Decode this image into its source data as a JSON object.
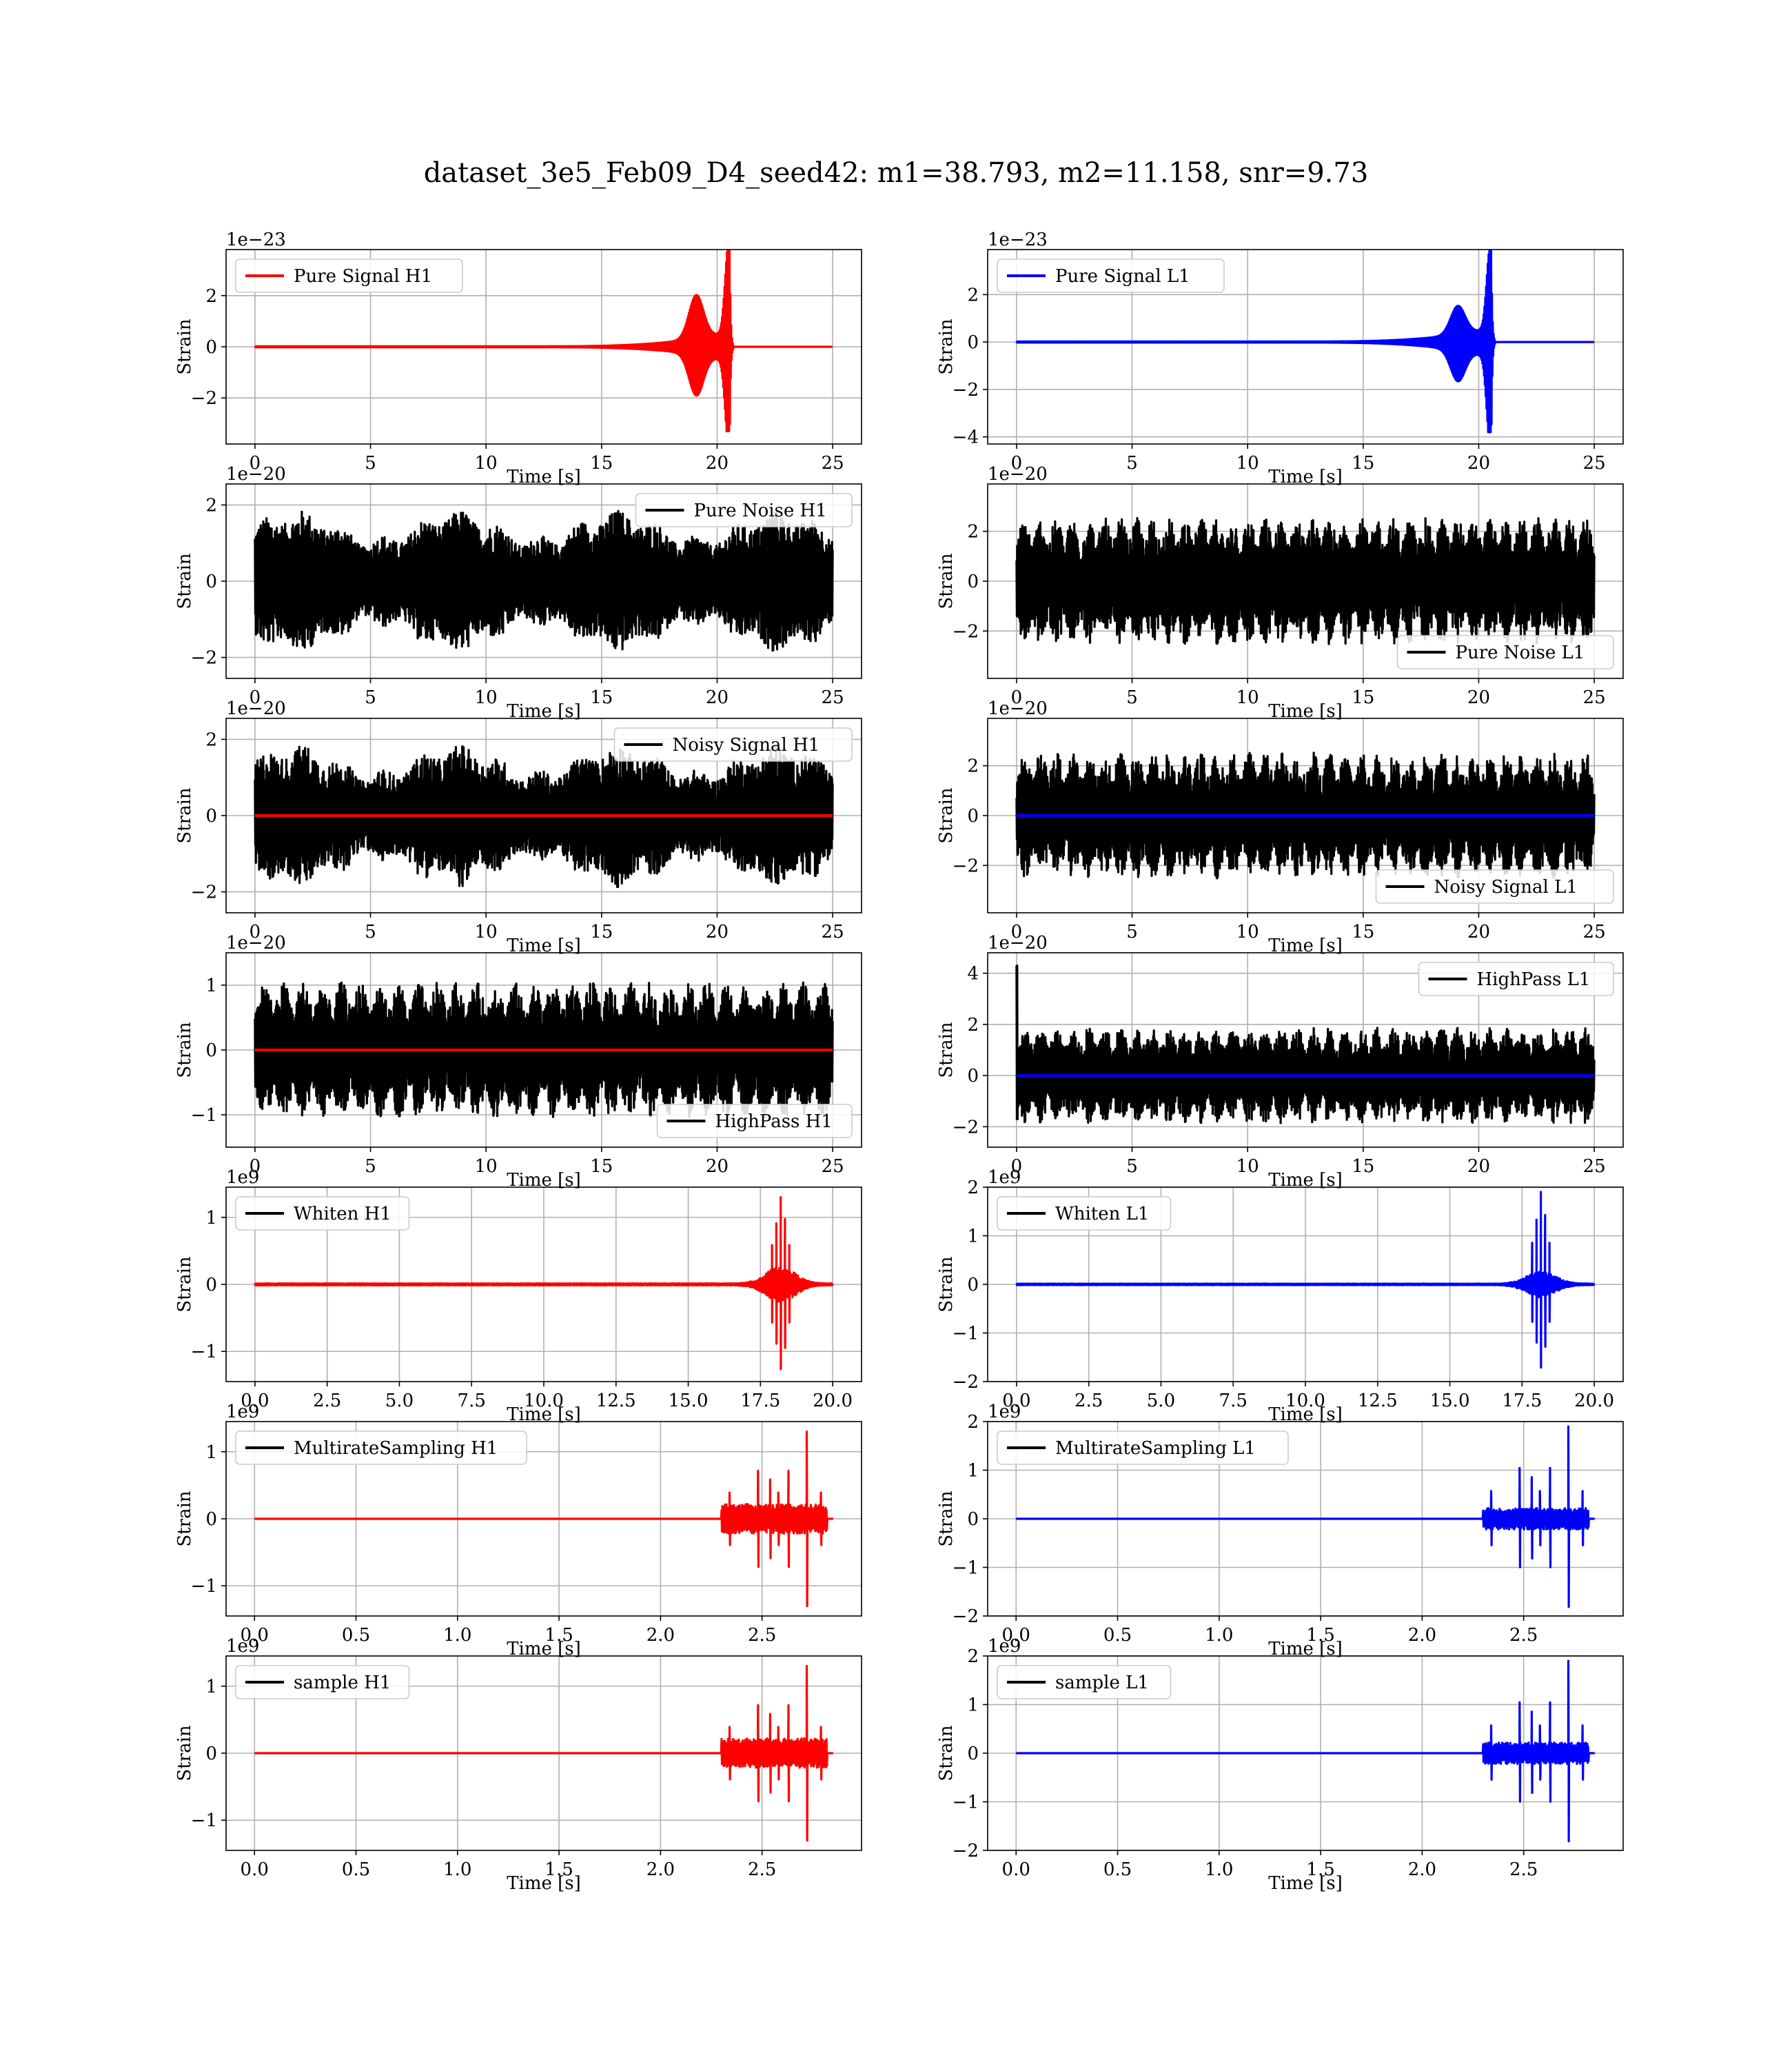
{
  "figure": {
    "title": "dataset_3e5_Feb09_D4_seed42: m1=38.793, m2=11.158, snr=9.73"
  },
  "colors": {
    "h1": "#ff0000",
    "l1": "#0000ff",
    "noise": "#000000",
    "grid": "#b0b0b0"
  },
  "chart_data": [
    {
      "type": "line",
      "id": "pure-signal-h1",
      "legend": [
        "Pure Signal H1"
      ],
      "legend_loc": "upper-left",
      "xlabel": "Time [s]",
      "ylabel": "Strain",
      "offset_label": "1e−23",
      "xlim": [
        -1.25,
        26.25
      ],
      "ylim": [
        -3.8,
        3.8
      ],
      "xticks": [
        0,
        5,
        10,
        15,
        20,
        25
      ],
      "xticklabels": [
        "0",
        "5",
        "10",
        "15",
        "20",
        "25"
      ],
      "yticks": [
        -2,
        0,
        2
      ],
      "yticklabels": [
        "−2",
        "0",
        "2"
      ],
      "grid": true,
      "x_end": 25,
      "series": [
        {
          "kind": "chirp",
          "color": "#ff0000",
          "merger": 20.55,
          "peak_main": 3.5,
          "peak_min": -3.3,
          "bump_time": 19.1,
          "bump_height": 1.7
        }
      ]
    },
    {
      "type": "line",
      "id": "pure-signal-l1",
      "legend": [
        "Pure Signal L1"
      ],
      "legend_loc": "upper-left",
      "xlabel": "Time [s]",
      "ylabel": "Strain",
      "offset_label": "1e−23",
      "xlim": [
        -1.25,
        26.25
      ],
      "ylim": [
        -4.3,
        3.9
      ],
      "xticks": [
        0,
        5,
        10,
        15,
        20,
        25
      ],
      "xticklabels": [
        "0",
        "5",
        "10",
        "15",
        "20",
        "25"
      ],
      "yticks": [
        -4,
        -2,
        0,
        2
      ],
      "yticklabels": [
        "−4",
        "−2",
        "0",
        "2"
      ],
      "grid": true,
      "x_end": 25,
      "series": [
        {
          "kind": "chirp",
          "color": "#0000ff",
          "merger": 20.55,
          "peak_main": 3.5,
          "peak_min": -3.8,
          "bump_time": 19.1,
          "bump_height": 1.2
        }
      ]
    },
    {
      "type": "line",
      "id": "pure-noise-h1",
      "legend": [
        "Pure Noise H1"
      ],
      "legend_loc": "upper-right",
      "xlabel": "Time [s]",
      "ylabel": "Strain",
      "offset_label": "1e−20",
      "xlim": [
        -1.25,
        26.25
      ],
      "ylim": [
        -2.55,
        2.55
      ],
      "xticks": [
        0,
        5,
        10,
        15,
        20,
        25
      ],
      "xticklabels": [
        "0",
        "5",
        "10",
        "15",
        "20",
        "25"
      ],
      "yticks": [
        -2,
        0,
        2
      ],
      "yticklabels": [
        "−2",
        "0",
        "2"
      ],
      "grid": true,
      "x_end": 25,
      "series": [
        {
          "kind": "noise",
          "color": "#000000",
          "amplitude": 1.55,
          "peak": 2.3,
          "periods": 0
        }
      ]
    },
    {
      "type": "line",
      "id": "pure-noise-l1",
      "legend": [
        "Pure Noise L1"
      ],
      "legend_loc": "lower-right",
      "xlabel": "Time [s]",
      "ylabel": "Strain",
      "offset_label": "1e−20",
      "xlim": [
        -1.25,
        26.25
      ],
      "ylim": [
        -3.9,
        3.9
      ],
      "xticks": [
        0,
        5,
        10,
        15,
        20,
        25
      ],
      "xticklabels": [
        "0",
        "5",
        "10",
        "15",
        "20",
        "25"
      ],
      "yticks": [
        -2,
        0,
        2
      ],
      "yticklabels": [
        "−2",
        "0",
        "2"
      ],
      "grid": true,
      "x_end": 25,
      "series": [
        {
          "kind": "noise",
          "color": "#000000",
          "amplitude": 2.3,
          "peak": 3.4,
          "periods": 36
        }
      ]
    },
    {
      "type": "line",
      "id": "noisy-signal-h1",
      "legend": [
        "Noisy Signal H1"
      ],
      "legend_loc": "upper-right",
      "xlabel": "Time [s]",
      "ylabel": "Strain",
      "offset_label": "1e−20",
      "xlim": [
        -1.25,
        26.25
      ],
      "ylim": [
        -2.55,
        2.55
      ],
      "xticks": [
        0,
        5,
        10,
        15,
        20,
        25
      ],
      "xticklabels": [
        "0",
        "5",
        "10",
        "15",
        "20",
        "25"
      ],
      "yticks": [
        -2,
        0,
        2
      ],
      "yticklabels": [
        "−2",
        "0",
        "2"
      ],
      "grid": true,
      "x_end": 25,
      "series": [
        {
          "kind": "noise",
          "color": "#000000",
          "amplitude": 1.55,
          "peak": 2.3,
          "periods": 0
        },
        {
          "kind": "flat",
          "color": "#ff0000"
        }
      ]
    },
    {
      "type": "line",
      "id": "noisy-signal-l1",
      "legend": [
        "Noisy Signal L1"
      ],
      "legend_loc": "lower-right",
      "xlabel": "Time [s]",
      "ylabel": "Strain",
      "offset_label": "1e−20",
      "xlim": [
        -1.25,
        26.25
      ],
      "ylim": [
        -3.9,
        3.9
      ],
      "xticks": [
        0,
        5,
        10,
        15,
        20,
        25
      ],
      "xticklabels": [
        "0",
        "5",
        "10",
        "15",
        "20",
        "25"
      ],
      "yticks": [
        -2,
        0,
        2
      ],
      "yticklabels": [
        "−2",
        "0",
        "2"
      ],
      "grid": true,
      "x_end": 25,
      "series": [
        {
          "kind": "noise",
          "color": "#000000",
          "amplitude": 2.3,
          "peak": 3.4,
          "periods": 36
        },
        {
          "kind": "flat",
          "color": "#0000ff"
        }
      ]
    },
    {
      "type": "line",
      "id": "highpass-h1",
      "legend": [
        "HighPass H1"
      ],
      "legend_loc": "lower-right",
      "xlabel": "Time [s]",
      "ylabel": "Strain",
      "offset_label": "1e−20",
      "xlim": [
        -1.25,
        26.25
      ],
      "ylim": [
        -1.5,
        1.5
      ],
      "xticks": [
        0,
        5,
        10,
        15,
        20,
        25
      ],
      "xticklabels": [
        "0",
        "5",
        "10",
        "15",
        "20",
        "25"
      ],
      "yticks": [
        -1,
        0,
        1
      ],
      "yticklabels": [
        "−1",
        "0",
        "1"
      ],
      "grid": true,
      "x_end": 25,
      "series": [
        {
          "kind": "noise",
          "color": "#000000",
          "amplitude": 0.95,
          "peak": 1.35,
          "periods": 30
        },
        {
          "kind": "flat",
          "color": "#ff0000"
        }
      ]
    },
    {
      "type": "line",
      "id": "highpass-l1",
      "legend": [
        "HighPass L1"
      ],
      "legend_loc": "upper-right",
      "xlabel": "Time [s]",
      "ylabel": "Strain",
      "offset_label": "1e−20",
      "xlim": [
        -1.25,
        26.25
      ],
      "ylim": [
        -2.8,
        4.8
      ],
      "xticks": [
        0,
        5,
        10,
        15,
        20,
        25
      ],
      "xticklabels": [
        "0",
        "5",
        "10",
        "15",
        "20",
        "25"
      ],
      "yticks": [
        -2,
        0,
        2,
        4
      ],
      "yticklabels": [
        "−2",
        "0",
        "2",
        "4"
      ],
      "grid": true,
      "x_end": 25,
      "series": [
        {
          "kind": "noise",
          "color": "#000000",
          "amplitude": 1.7,
          "peak": 2.4,
          "periods": 36,
          "spike": 4.3
        },
        {
          "kind": "flat",
          "color": "#0000ff"
        }
      ]
    },
    {
      "type": "line",
      "id": "whiten-h1",
      "legend": [
        "Whiten H1"
      ],
      "legend_loc": "upper-left",
      "xlabel": "Time [s]",
      "ylabel": "Strain",
      "offset_label": "1e9",
      "xlim": [
        -1.0,
        21.0
      ],
      "ylim": [
        -1.45,
        1.45
      ],
      "xticks": [
        0,
        2.5,
        5,
        7.5,
        10,
        12.5,
        15,
        17.5,
        20
      ],
      "xticklabels": [
        "0.0",
        "2.5",
        "5.0",
        "7.5",
        "10.0",
        "12.5",
        "15.0",
        "17.5",
        "20.0"
      ],
      "yticks": [
        -1,
        0,
        1
      ],
      "yticklabels": [
        "−1",
        "0",
        "1"
      ],
      "grid": true,
      "x_end": 20,
      "series": [
        {
          "kind": "burst",
          "color": "#ff0000",
          "center": 18.2,
          "width": 0.7,
          "peak": 1.3,
          "trough": -1.33
        }
      ]
    },
    {
      "type": "line",
      "id": "whiten-l1",
      "legend": [
        "Whiten L1"
      ],
      "legend_loc": "upper-left",
      "xlabel": "Time [s]",
      "ylabel": "Strain",
      "offset_label": "1e9",
      "xlim": [
        -1.0,
        21.0
      ],
      "ylim": [
        -2.0,
        2.0
      ],
      "xticks": [
        0,
        2.5,
        5,
        7.5,
        10,
        12.5,
        15,
        17.5,
        20
      ],
      "xticklabels": [
        "0.0",
        "2.5",
        "5.0",
        "7.5",
        "10.0",
        "12.5",
        "15.0",
        "17.5",
        "20.0"
      ],
      "yticks": [
        -2,
        -1,
        0,
        1,
        2
      ],
      "yticklabels": [
        "−2",
        "−1",
        "0",
        "1",
        "2"
      ],
      "grid": true,
      "x_end": 20,
      "series": [
        {
          "kind": "burst",
          "color": "#0000ff",
          "center": 18.15,
          "width": 0.7,
          "peak": 1.9,
          "trough": -1.8
        }
      ]
    },
    {
      "type": "line",
      "id": "multiratesampling-h1",
      "legend": [
        "MultirateSampling H1"
      ],
      "legend_loc": "upper-left",
      "xlabel": "Time [s]",
      "ylabel": "Strain",
      "offset_label": "1e9",
      "xlim": [
        -0.14,
        2.99
      ],
      "ylim": [
        -1.45,
        1.45
      ],
      "xticks": [
        0,
        0.5,
        1.0,
        1.5,
        2.0,
        2.5
      ],
      "xticklabels": [
        "0.0",
        "0.5",
        "1.0",
        "1.5",
        "2.0",
        "2.5"
      ],
      "yticks": [
        -1,
        0,
        1
      ],
      "yticklabels": [
        "−1",
        "0",
        "1"
      ],
      "grid": true,
      "x_end": 2.85,
      "series": [
        {
          "kind": "multirate",
          "color": "#ff0000",
          "start": 2.3,
          "spike_time": 2.72,
          "peak": 1.3,
          "trough": -1.33
        }
      ]
    },
    {
      "type": "line",
      "id": "multiratesampling-l1",
      "legend": [
        "MultirateSampling L1"
      ],
      "legend_loc": "upper-left",
      "xlabel": "Time [s]",
      "ylabel": "Strain",
      "offset_label": "1e9",
      "xlim": [
        -0.14,
        2.99
      ],
      "ylim": [
        -2.0,
        2.0
      ],
      "xticks": [
        0,
        0.5,
        1.0,
        1.5,
        2.0,
        2.5
      ],
      "xticklabels": [
        "0.0",
        "0.5",
        "1.0",
        "1.5",
        "2.0",
        "2.5"
      ],
      "yticks": [
        -2,
        -1,
        0,
        1,
        2
      ],
      "yticklabels": [
        "−2",
        "−1",
        "0",
        "1",
        "2"
      ],
      "grid": true,
      "x_end": 2.85,
      "series": [
        {
          "kind": "multirate",
          "color": "#0000ff",
          "start": 2.3,
          "spike_time": 2.72,
          "peak": 1.9,
          "trough": -1.85
        }
      ]
    },
    {
      "type": "line",
      "id": "sample-h1",
      "legend": [
        "sample H1"
      ],
      "legend_loc": "upper-left",
      "xlabel": "Time [s]",
      "ylabel": "Strain",
      "offset_label": "1e9",
      "xlim": [
        -0.14,
        2.99
      ],
      "ylim": [
        -1.45,
        1.45
      ],
      "xticks": [
        0,
        0.5,
        1.0,
        1.5,
        2.0,
        2.5
      ],
      "xticklabels": [
        "0.0",
        "0.5",
        "1.0",
        "1.5",
        "2.0",
        "2.5"
      ],
      "yticks": [
        -1,
        0,
        1
      ],
      "yticklabels": [
        "−1",
        "0",
        "1"
      ],
      "grid": true,
      "x_end": 2.85,
      "series": [
        {
          "kind": "multirate",
          "color": "#ff0000",
          "start": 2.3,
          "spike_time": 2.72,
          "peak": 1.3,
          "trough": -1.33
        }
      ]
    },
    {
      "type": "line",
      "id": "sample-l1",
      "legend": [
        "sample L1"
      ],
      "legend_loc": "upper-left",
      "xlabel": "Time [s]",
      "ylabel": "Strain",
      "offset_label": "1e9",
      "xlim": [
        -0.14,
        2.99
      ],
      "ylim": [
        -2.0,
        2.0
      ],
      "xticks": [
        0,
        0.5,
        1.0,
        1.5,
        2.0,
        2.5
      ],
      "xticklabels": [
        "0.0",
        "0.5",
        "1.0",
        "1.5",
        "2.0",
        "2.5"
      ],
      "yticks": [
        -2,
        -1,
        0,
        1,
        2
      ],
      "yticklabels": [
        "−2",
        "−1",
        "0",
        "1",
        "2"
      ],
      "grid": true,
      "x_end": 2.85,
      "series": [
        {
          "kind": "multirate",
          "color": "#0000ff",
          "start": 2.3,
          "spike_time": 2.72,
          "peak": 1.9,
          "trough": -1.85
        }
      ]
    }
  ]
}
